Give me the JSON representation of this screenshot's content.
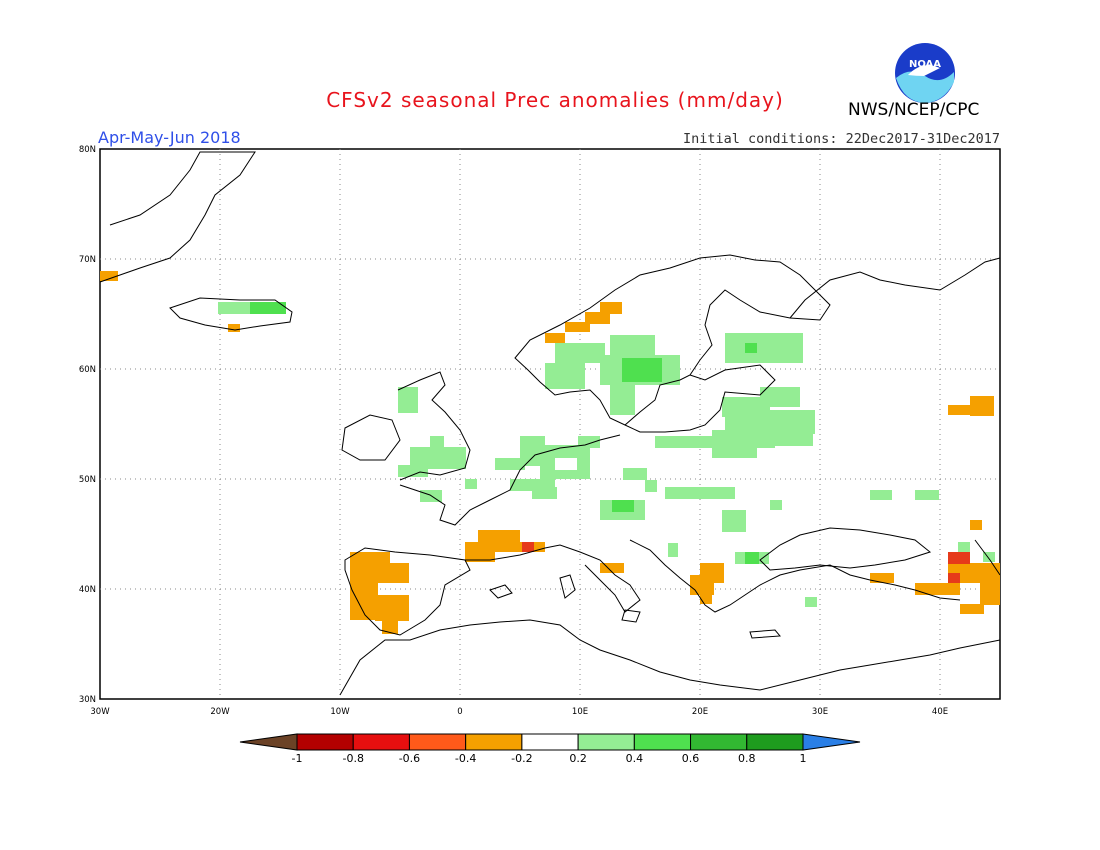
{
  "title": "CFSv2 seasonal Prec anomalies (mm/day)",
  "period": "Apr-May-Jun 2018",
  "initial_conditions": "Initial conditions: 22Dec2017-31Dec2017",
  "agency": "NWS/NCEP/CPC",
  "logo_text": "NOAA",
  "map": {
    "lon_range": [
      -30,
      45
    ],
    "lat_range": [
      30,
      80
    ],
    "lat_labels": [
      "80N",
      "70N",
      "60N",
      "50N",
      "40N",
      "30N"
    ],
    "lon_labels": [
      "30W",
      "20W",
      "10W",
      "0",
      "10E",
      "20E",
      "30E",
      "40E"
    ],
    "grid_style": "dotted"
  },
  "legend": {
    "labels": [
      "-1",
      "-0.8",
      "-0.6",
      "-0.4",
      "-0.2",
      "0.2",
      "0.4",
      "0.6",
      "0.8",
      "1"
    ],
    "colors": [
      "#6b4226",
      "#b30000",
      "#e60f0f",
      "#ff5a1a",
      "#f5a000",
      "#ffffff",
      "#94ed94",
      "#4fe04f",
      "#32b832",
      "#1e9c1e",
      "#2a7fe6"
    ]
  },
  "colors": {
    "land": "#ffffff",
    "light_green": "#94ed94",
    "green": "#4fe04f",
    "orange": "#f5a000",
    "red": "#e63a1a",
    "title_red": "#e8141d",
    "period_blue": "#2f4fe8"
  }
}
